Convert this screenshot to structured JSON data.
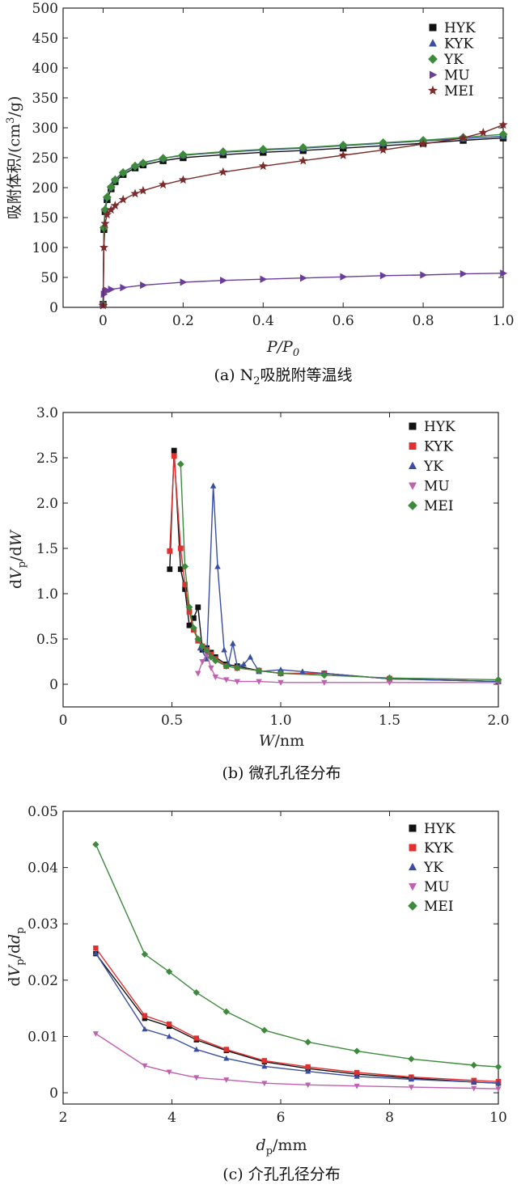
{
  "chart_data": [
    {
      "type": "line",
      "xlabel": "P/P0",
      "xlabel_main": "P/P",
      "xlabel_sub": "0",
      "ylabel": "吸附体积/(cm³/g)",
      "ylabel_pre": "吸附体积/(cm",
      "ylabel_sup": "3",
      "ylabel_post": "/g)",
      "xlim": [
        -0.1,
        1.0
      ],
      "ylim": [
        0,
        500
      ],
      "xticks": [
        0,
        0.2,
        0.4,
        0.6,
        0.8,
        1.0
      ],
      "xtick_labels": [
        "0",
        "0.2",
        "0.4",
        "0.6",
        "0.8",
        "1.0"
      ],
      "yticks": [
        0,
        50,
        100,
        150,
        200,
        250,
        300,
        350,
        400,
        450,
        500
      ],
      "ytick_labels": [
        "0",
        "50",
        "100",
        "150",
        "200",
        "250",
        "300",
        "350",
        "400",
        "450",
        "500"
      ],
      "caption": "(a) N₂吸脱附等温线",
      "caption_pre": "(a) N",
      "caption_sub": "2",
      "caption_post": "吸脱附等温线",
      "legend_position": "top-right",
      "series": [
        {
          "name": "HYK",
          "color": "#111111",
          "marker": "square",
          "x": [
            0,
            0.002,
            0.005,
            0.01,
            0.02,
            0.03,
            0.05,
            0.08,
            0.1,
            0.15,
            0.2,
            0.3,
            0.4,
            0.5,
            0.6,
            0.7,
            0.8,
            0.9,
            1.0
          ],
          "y": [
            5,
            130,
            160,
            180,
            198,
            210,
            222,
            233,
            238,
            245,
            250,
            255,
            259,
            262,
            266,
            270,
            274,
            279,
            283
          ]
        },
        {
          "name": "KYK",
          "color": "#3a4ea0",
          "marker": "triangle",
          "x": [
            0,
            0.002,
            0.005,
            0.01,
            0.02,
            0.03,
            0.05,
            0.08,
            0.1,
            0.15,
            0.2,
            0.3,
            0.4,
            0.5,
            0.6,
            0.7,
            0.8,
            0.9,
            1.0
          ],
          "y": [
            5,
            135,
            165,
            185,
            202,
            214,
            226,
            237,
            242,
            249,
            254,
            259,
            263,
            266,
            270,
            274,
            278,
            282,
            286
          ]
        },
        {
          "name": "YK",
          "color": "#3d8a3d",
          "marker": "diamond",
          "x": [
            0,
            0.002,
            0.005,
            0.01,
            0.02,
            0.03,
            0.05,
            0.08,
            0.1,
            0.15,
            0.2,
            0.3,
            0.4,
            0.5,
            0.6,
            0.7,
            0.8,
            0.9,
            1.0
          ],
          "y": [
            5,
            133,
            163,
            184,
            201,
            213,
            225,
            236,
            241,
            249,
            255,
            260,
            264,
            267,
            271,
            275,
            279,
            284,
            289
          ]
        },
        {
          "name": "MU",
          "color": "#6a3d9a",
          "marker": "triangle-right",
          "x": [
            0,
            0.002,
            0.005,
            0.01,
            0.02,
            0.05,
            0.1,
            0.2,
            0.3,
            0.4,
            0.5,
            0.6,
            0.7,
            0.8,
            0.9,
            1.0
          ],
          "y": [
            3,
            22,
            26,
            28,
            30,
            33,
            37,
            42,
            45,
            47,
            49,
            51,
            53,
            54,
            56,
            57
          ]
        },
        {
          "name": "MEI",
          "color": "#7b2b2b",
          "marker": "star",
          "x": [
            0,
            0.002,
            0.005,
            0.01,
            0.02,
            0.03,
            0.05,
            0.08,
            0.1,
            0.15,
            0.2,
            0.3,
            0.4,
            0.5,
            0.6,
            0.7,
            0.8,
            0.9,
            0.95,
            1.0
          ],
          "y": [
            3,
            100,
            140,
            155,
            163,
            170,
            180,
            190,
            195,
            205,
            213,
            226,
            236,
            245,
            254,
            263,
            273,
            283,
            292,
            305
          ]
        }
      ]
    },
    {
      "type": "line",
      "xlabel": "W/nm",
      "xlabel_main": "W",
      "xlabel_unit": "/nm",
      "ylabel": "dVp/dW",
      "ylabel_pre": "d",
      "ylabel_v": "V",
      "ylabel_sub": "p",
      "ylabel_post": "/d",
      "ylabel_w": "W",
      "xlim": [
        0,
        2.0
      ],
      "ylim": [
        -0.25,
        3.0
      ],
      "xticks": [
        0,
        0.5,
        1.0,
        1.5,
        2.0
      ],
      "xtick_labels": [
        "0",
        "0.5",
        "1.0",
        "1.5",
        "2.0"
      ],
      "yticks": [
        0,
        0.5,
        1.0,
        1.5,
        2.0,
        2.5,
        3.0
      ],
      "ytick_labels": [
        "0",
        "0.5",
        "1.0",
        "1.5",
        "2.0",
        "2.5",
        "3.0"
      ],
      "caption": "(b) 微孔孔径分布",
      "legend_position": "top-right",
      "series": [
        {
          "name": "HYK",
          "color": "#111111",
          "marker": "square",
          "x": [
            0.49,
            0.51,
            0.54,
            0.56,
            0.58,
            0.6,
            0.62,
            0.64,
            0.66,
            0.68,
            0.7,
            0.75,
            0.8,
            0.9,
            1.0,
            1.2,
            1.5,
            2.0
          ],
          "y": [
            1.27,
            2.58,
            1.27,
            1.05,
            0.65,
            0.73,
            0.85,
            0.38,
            0.4,
            0.35,
            0.3,
            0.22,
            0.2,
            0.15,
            0.12,
            0.12,
            0.06,
            0.03
          ]
        },
        {
          "name": "KYK",
          "color": "#e03030",
          "marker": "square",
          "x": [
            0.49,
            0.51,
            0.54,
            0.56,
            0.58,
            0.6,
            0.62,
            0.64,
            0.66,
            0.68,
            0.7,
            0.75,
            0.8,
            0.9,
            1.0,
            1.2,
            1.5,
            2.0
          ],
          "y": [
            1.47,
            2.52,
            1.5,
            1.1,
            0.8,
            0.6,
            0.48,
            0.42,
            0.38,
            0.33,
            0.28,
            0.2,
            0.18,
            0.15,
            0.12,
            0.12,
            0.06,
            0.03
          ]
        },
        {
          "name": "YK",
          "color": "#3a4ea0",
          "marker": "triangle",
          "x": [
            0.63,
            0.66,
            0.69,
            0.71,
            0.74,
            0.76,
            0.78,
            0.8,
            0.83,
            0.86,
            0.9,
            1.0,
            1.1,
            1.2,
            1.5,
            2.0
          ],
          "y": [
            0.4,
            0.28,
            2.19,
            1.3,
            0.38,
            0.22,
            0.45,
            0.2,
            0.22,
            0.3,
            0.14,
            0.16,
            0.14,
            0.12,
            0.06,
            0.03
          ]
        },
        {
          "name": "MU",
          "color": "#c060b0",
          "marker": "triangle-down",
          "x": [
            0.62,
            0.64,
            0.66,
            0.68,
            0.7,
            0.75,
            0.8,
            0.9,
            1.0,
            1.2,
            1.5,
            2.0
          ],
          "y": [
            0.12,
            0.25,
            0.33,
            0.18,
            0.08,
            0.05,
            0.03,
            0.03,
            0.02,
            0.02,
            0.02,
            0.02
          ]
        },
        {
          "name": "MEI",
          "color": "#3d8a3d",
          "marker": "diamond",
          "x": [
            0.54,
            0.56,
            0.58,
            0.6,
            0.62,
            0.64,
            0.66,
            0.68,
            0.7,
            0.75,
            0.8,
            0.9,
            1.0,
            1.2,
            1.5,
            2.0
          ],
          "y": [
            2.43,
            1.3,
            0.85,
            0.62,
            0.5,
            0.42,
            0.37,
            0.3,
            0.26,
            0.2,
            0.18,
            0.15,
            0.12,
            0.1,
            0.07,
            0.05
          ]
        }
      ]
    },
    {
      "type": "line",
      "xlabel": "dp/mm",
      "xlabel_main": "d",
      "xlabel_sub": "p",
      "xlabel_unit": "/mm",
      "ylabel": "dVp/ddp",
      "ylabel_pre": "d",
      "ylabel_v": "V",
      "ylabel_sub": "p",
      "ylabel_post": "/d",
      "ylabel_d": "d",
      "ylabel_sub2": "p",
      "xlim": [
        2,
        10
      ],
      "ylim": [
        -0.002,
        0.05
      ],
      "xticks": [
        2,
        4,
        6,
        8,
        10
      ],
      "xtick_labels": [
        "2",
        "4",
        "6",
        "8",
        "10"
      ],
      "yticks": [
        0,
        0.01,
        0.02,
        0.03,
        0.04,
        0.05
      ],
      "ytick_labels": [
        "0",
        "0.01",
        "0.02",
        "0.03",
        "0.04",
        "0.05"
      ],
      "caption": "(c) 介孔孔径分布",
      "legend_position": "top-right",
      "series": [
        {
          "name": "HYK",
          "color": "#111111",
          "marker": "square",
          "x": [
            2.6,
            3.5,
            3.95,
            4.45,
            5.0,
            5.7,
            6.5,
            7.4,
            8.4,
            9.55,
            10
          ],
          "y": [
            0.0247,
            0.0132,
            0.0118,
            0.0094,
            0.0075,
            0.0055,
            0.0043,
            0.0033,
            0.0026,
            0.0019,
            0.0017
          ]
        },
        {
          "name": "KYK",
          "color": "#e03030",
          "marker": "square",
          "x": [
            2.6,
            3.5,
            3.95,
            4.45,
            5.0,
            5.7,
            6.5,
            7.4,
            8.4,
            9.55,
            10
          ],
          "y": [
            0.0257,
            0.0137,
            0.0122,
            0.0097,
            0.0077,
            0.0057,
            0.0046,
            0.0036,
            0.0028,
            0.0022,
            0.002
          ]
        },
        {
          "name": "YK",
          "color": "#3a4ea0",
          "marker": "triangle",
          "x": [
            2.6,
            3.5,
            3.95,
            4.45,
            5.0,
            5.7,
            6.5,
            7.4,
            8.4,
            9.55,
            10
          ],
          "y": [
            0.0248,
            0.0113,
            0.01,
            0.0077,
            0.0061,
            0.0047,
            0.0038,
            0.0029,
            0.0024,
            0.0019,
            0.0017
          ]
        },
        {
          "name": "MU",
          "color": "#c060b0",
          "marker": "triangle-down",
          "x": [
            2.6,
            3.5,
            3.95,
            4.45,
            5.0,
            5.7,
            6.5,
            7.4,
            8.4,
            9.55,
            10
          ],
          "y": [
            0.0105,
            0.0048,
            0.0037,
            0.0027,
            0.0023,
            0.0017,
            0.0014,
            0.0012,
            0.001,
            0.0008,
            0.0007
          ]
        },
        {
          "name": "MEI",
          "color": "#3d8a3d",
          "marker": "diamond",
          "x": [
            2.6,
            3.5,
            3.95,
            4.45,
            5.0,
            5.7,
            6.5,
            7.4,
            8.4,
            9.55,
            10
          ],
          "y": [
            0.0441,
            0.0246,
            0.0215,
            0.0178,
            0.0144,
            0.0111,
            0.009,
            0.0074,
            0.006,
            0.0049,
            0.0046
          ]
        }
      ]
    }
  ]
}
